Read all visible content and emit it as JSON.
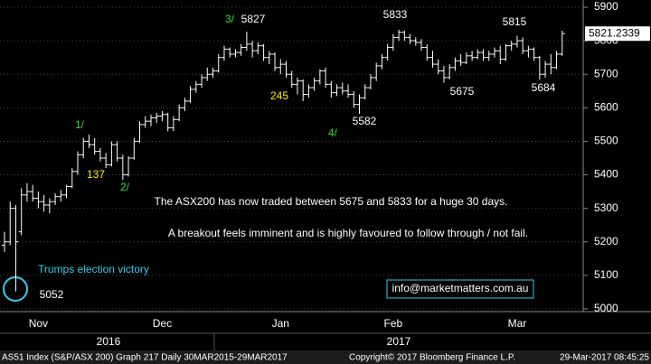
{
  "chart_data": {
    "type": "ohlc",
    "bar_color": "#ffffff",
    "ylim": [
      5000,
      5900
    ],
    "yticks": [
      5000,
      5100,
      5200,
      5300,
      5400,
      5500,
      5600,
      5700,
      5800,
      5900
    ],
    "grid": true,
    "categories": [
      null,
      null,
      null,
      null,
      null,
      null,
      "Nov",
      null,
      null,
      null,
      null,
      null,
      null,
      null,
      null,
      null,
      null,
      null,
      null,
      null,
      null,
      null,
      null,
      null,
      null,
      null,
      null,
      null,
      "Dec",
      null,
      null,
      null,
      null,
      null,
      null,
      null,
      null,
      null,
      null,
      null,
      null,
      null,
      null,
      null,
      null,
      null,
      null,
      null,
      null,
      "Jan",
      null,
      null,
      null,
      null,
      null,
      null,
      null,
      null,
      null,
      null,
      null,
      null,
      null,
      null,
      null,
      null,
      null,
      null,
      null,
      "Feb",
      null,
      null,
      null,
      null,
      null,
      null,
      null,
      null,
      null,
      null,
      null,
      null,
      null,
      null,
      null,
      null,
      null,
      null,
      null,
      null,
      null,
      "Mar",
      null,
      null,
      null,
      null,
      null,
      null,
      null,
      null
    ],
    "year_labels": [
      "2016",
      "2017"
    ],
    "values": [
      [
        5190,
        5230,
        5170,
        5200
      ],
      [
        5200,
        5320,
        5190,
        5300
      ],
      [
        5300,
        5310,
        5052,
        5200
      ],
      [
        5230,
        5360,
        5220,
        5340
      ],
      [
        5340,
        5375,
        5320,
        5350
      ],
      [
        5350,
        5370,
        5320,
        5330
      ],
      [
        5330,
        5350,
        5300,
        5320
      ],
      [
        5320,
        5340,
        5290,
        5310
      ],
      [
        5310,
        5330,
        5285,
        5320
      ],
      [
        5320,
        5345,
        5310,
        5335
      ],
      [
        5335,
        5355,
        5320,
        5340
      ],
      [
        5340,
        5370,
        5330,
        5365
      ],
      [
        5365,
        5420,
        5360,
        5410
      ],
      [
        5410,
        5470,
        5400,
        5460
      ],
      [
        5460,
        5510,
        5450,
        5500
      ],
      [
        5500,
        5520,
        5480,
        5490
      ],
      [
        5490,
        5510,
        5460,
        5470
      ],
      [
        5470,
        5480,
        5440,
        5450
      ],
      [
        5450,
        5465,
        5420,
        5430
      ],
      [
        5430,
        5500,
        5425,
        5490
      ],
      [
        5490,
        5500,
        5440,
        5450
      ],
      [
        5450,
        5460,
        5385,
        5400
      ],
      [
        5400,
        5455,
        5395,
        5450
      ],
      [
        5450,
        5510,
        5445,
        5500
      ],
      [
        5500,
        5560,
        5495,
        5550
      ],
      [
        5550,
        5575,
        5540,
        5560
      ],
      [
        5560,
        5580,
        5545,
        5570
      ],
      [
        5570,
        5585,
        5555,
        5575
      ],
      [
        5575,
        5590,
        5560,
        5580
      ],
      [
        5580,
        5585,
        5530,
        5540
      ],
      [
        5540,
        5575,
        5530,
        5565
      ],
      [
        5565,
        5610,
        5560,
        5600
      ],
      [
        5600,
        5630,
        5590,
        5620
      ],
      [
        5620,
        5665,
        5615,
        5655
      ],
      [
        5655,
        5680,
        5645,
        5670
      ],
      [
        5670,
        5700,
        5660,
        5690
      ],
      [
        5690,
        5720,
        5680,
        5700
      ],
      [
        5700,
        5720,
        5690,
        5710
      ],
      [
        5710,
        5760,
        5705,
        5750
      ],
      [
        5750,
        5785,
        5740,
        5775
      ],
      [
        5775,
        5780,
        5750,
        5760
      ],
      [
        5760,
        5775,
        5750,
        5765
      ],
      [
        5765,
        5790,
        5755,
        5780
      ],
      [
        5780,
        5827,
        5770,
        5790
      ],
      [
        5790,
        5800,
        5750,
        5770
      ],
      [
        5770,
        5795,
        5760,
        5785
      ],
      [
        5785,
        5790,
        5740,
        5750
      ],
      [
        5750,
        5770,
        5730,
        5760
      ],
      [
        5760,
        5765,
        5710,
        5720
      ],
      [
        5720,
        5745,
        5700,
        5730
      ],
      [
        5730,
        5740,
        5690,
        5700
      ],
      [
        5700,
        5710,
        5660,
        5670
      ],
      [
        5670,
        5690,
        5640,
        5680
      ],
      [
        5680,
        5685,
        5620,
        5640
      ],
      [
        5640,
        5670,
        5630,
        5660
      ],
      [
        5660,
        5690,
        5650,
        5680
      ],
      [
        5680,
        5715,
        5670,
        5710
      ],
      [
        5710,
        5720,
        5660,
        5670
      ],
      [
        5670,
        5680,
        5630,
        5645
      ],
      [
        5645,
        5670,
        5635,
        5660
      ],
      [
        5660,
        5675,
        5640,
        5650
      ],
      [
        5650,
        5670,
        5630,
        5640
      ],
      [
        5640,
        5650,
        5600,
        5610
      ],
      [
        5610,
        5640,
        5582,
        5630
      ],
      [
        5630,
        5670,
        5625,
        5660
      ],
      [
        5660,
        5700,
        5655,
        5690
      ],
      [
        5690,
        5735,
        5680,
        5725
      ],
      [
        5725,
        5760,
        5715,
        5750
      ],
      [
        5750,
        5790,
        5740,
        5780
      ],
      [
        5780,
        5820,
        5770,
        5810
      ],
      [
        5810,
        5833,
        5800,
        5825
      ],
      [
        5825,
        5830,
        5800,
        5810
      ],
      [
        5810,
        5820,
        5790,
        5800
      ],
      [
        5800,
        5810,
        5785,
        5795
      ],
      [
        5795,
        5805,
        5770,
        5780
      ],
      [
        5780,
        5790,
        5740,
        5750
      ],
      [
        5750,
        5770,
        5720,
        5730
      ],
      [
        5730,
        5745,
        5700,
        5710
      ],
      [
        5710,
        5725,
        5675,
        5690
      ],
      [
        5690,
        5730,
        5685,
        5720
      ],
      [
        5720,
        5750,
        5710,
        5740
      ],
      [
        5740,
        5760,
        5725,
        5735
      ],
      [
        5735,
        5765,
        5730,
        5755
      ],
      [
        5755,
        5770,
        5740,
        5750
      ],
      [
        5750,
        5775,
        5745,
        5765
      ],
      [
        5765,
        5775,
        5740,
        5750
      ],
      [
        5750,
        5770,
        5740,
        5760
      ],
      [
        5760,
        5780,
        5750,
        5770
      ],
      [
        5770,
        5785,
        5730,
        5745
      ],
      [
        5745,
        5790,
        5740,
        5785
      ],
      [
        5785,
        5800,
        5770,
        5790
      ],
      [
        5790,
        5815,
        5780,
        5800
      ],
      [
        5800,
        5810,
        5760,
        5770
      ],
      [
        5770,
        5785,
        5750,
        5775
      ],
      [
        5775,
        5780,
        5740,
        5750
      ],
      [
        5750,
        5755,
        5684,
        5700
      ],
      [
        5700,
        5740,
        5690,
        5730
      ],
      [
        5730,
        5760,
        5700,
        5720
      ],
      [
        5720,
        5770,
        5715,
        5760
      ],
      [
        5760,
        5830,
        5755,
        5821.2339
      ]
    ],
    "annotations": [
      {
        "text": "3/",
        "color": "#33dd33"
      },
      {
        "text": "5827",
        "color": "#ffffff"
      },
      {
        "text": "5833",
        "color": "#ffffff"
      },
      {
        "text": "5815",
        "color": "#ffffff"
      },
      {
        "text": "1/",
        "color": "#33dd33"
      },
      {
        "text": "137",
        "color": "#ffee00"
      },
      {
        "text": "2/",
        "color": "#33dd33"
      },
      {
        "text": "245",
        "color": "#ffee00"
      },
      {
        "text": "4/",
        "color": "#33dd33"
      },
      {
        "text": "5582",
        "color": "#ffffff"
      },
      {
        "text": "5675",
        "color": "#ffffff"
      },
      {
        "text": "5684",
        "color": "#ffffff"
      },
      {
        "text": "5052",
        "color": "#ffffff"
      },
      {
        "text": "Trumps election victory",
        "color": "#33ccee"
      },
      {
        "text": "The ASX200 has now traded between 5675 and 5833 for a huge 30 days.",
        "color": "#ffffff"
      },
      {
        "text": "A breakout feels imminent and is highly favoured to follow through / not fail.",
        "color": "#ffffff"
      },
      {
        "text": "info@marketmatters.com.au",
        "color": "#ffffff"
      }
    ],
    "footer": {
      "left": "AS51 Index (S&P/ASX 200) Graph 217  Daily 30MAR2015-29MAR2017",
      "center": "Copyright© 2017 Bloomberg Finance L.P.",
      "right": "29-Mar-2017 08:45:25"
    }
  }
}
